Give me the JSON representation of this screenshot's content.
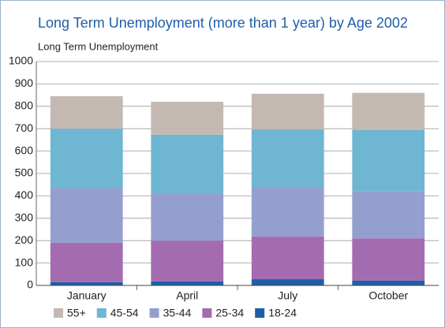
{
  "chart_data": {
    "type": "stacked_bar",
    "title": "Long Term Unemployment (more than 1 year) by Age 2002",
    "y_label": "Long Term Unemployment",
    "categories": [
      "January",
      "April",
      "July",
      "October"
    ],
    "series": [
      {
        "name": "18-24",
        "color": "#1f5ea8",
        "values": [
          15,
          18,
          28,
          22
        ]
      },
      {
        "name": "25-34",
        "color": "#a46cb0",
        "values": [
          175,
          182,
          190,
          188
        ]
      },
      {
        "name": "35-44",
        "color": "#959fcf",
        "values": [
          245,
          212,
          222,
          212
        ]
      },
      {
        "name": "45-54",
        "color": "#6fb6d2",
        "values": [
          265,
          261,
          258,
          273
        ]
      },
      {
        "name": "55+",
        "color": "#c4b9b2",
        "values": [
          145,
          147,
          158,
          165
        ]
      }
    ],
    "ylim": [
      0,
      1000
    ],
    "yticks": [
      0,
      100,
      200,
      300,
      400,
      500,
      600,
      700,
      800,
      900,
      1000
    ],
    "grid": true,
    "legend": "bottom"
  }
}
